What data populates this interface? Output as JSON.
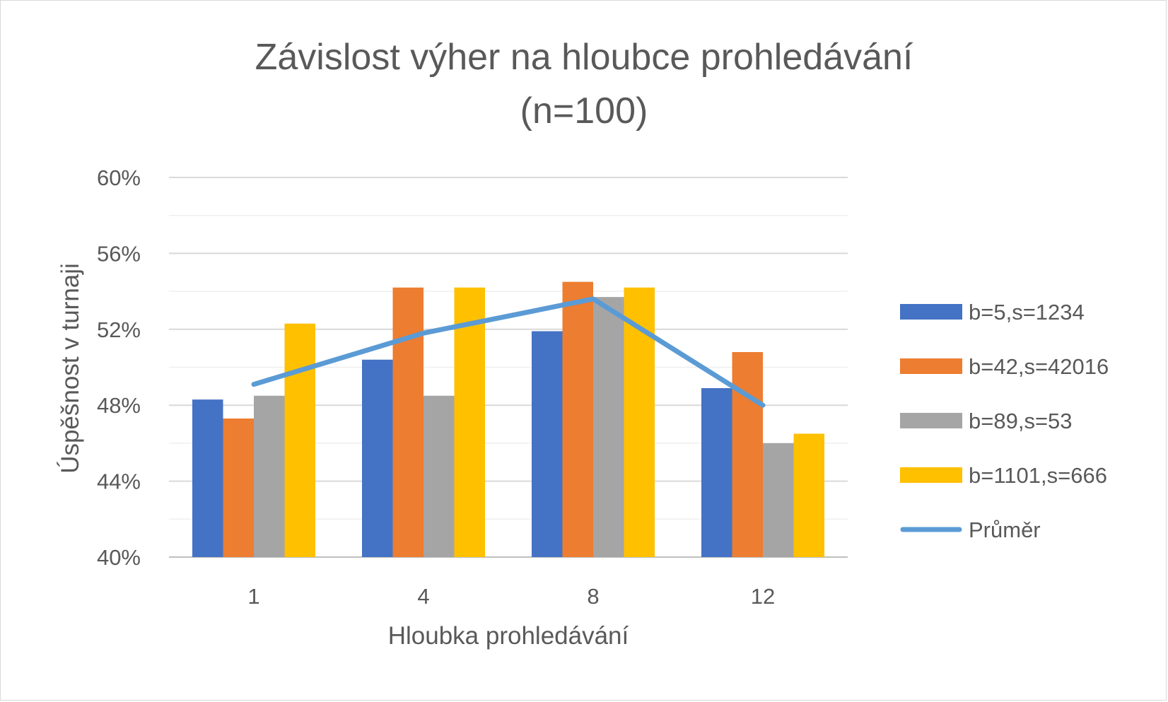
{
  "chart_data": {
    "type": "bar",
    "title": "Závislost výher na hloubce prohledávání",
    "subtitle": "(n=100)",
    "xlabel": "Hloubka prohledávání",
    "ylabel": "Úspěšnost v turnaji",
    "categories": [
      "1",
      "4",
      "8",
      "12"
    ],
    "ylim": [
      0.4,
      0.6
    ],
    "yticks": [
      0.4,
      0.44,
      0.48,
      0.52,
      0.56,
      0.6
    ],
    "ytick_labels": [
      "40%",
      "44%",
      "48%",
      "52%",
      "56%",
      "60%"
    ],
    "grid": true,
    "legend_position": "right",
    "series": [
      {
        "name": "b=5,s=1234",
        "type": "bar",
        "color": "#4472C4",
        "values": [
          0.483,
          0.504,
          0.519,
          0.489
        ]
      },
      {
        "name": "b=42,s=42016",
        "type": "bar",
        "color": "#ED7D31",
        "values": [
          0.473,
          0.542,
          0.545,
          0.508
        ]
      },
      {
        "name": "b=89,s=53",
        "type": "bar",
        "color": "#A5A5A5",
        "values": [
          0.485,
          0.485,
          0.537,
          0.46
        ]
      },
      {
        "name": "b=1101,s=666",
        "type": "bar",
        "color": "#FFC000",
        "values": [
          0.523,
          0.542,
          0.542,
          0.465
        ]
      },
      {
        "name": "Průměr",
        "type": "line",
        "color": "#5B9BD5",
        "values": [
          0.491,
          0.518,
          0.536,
          0.48
        ]
      }
    ]
  }
}
